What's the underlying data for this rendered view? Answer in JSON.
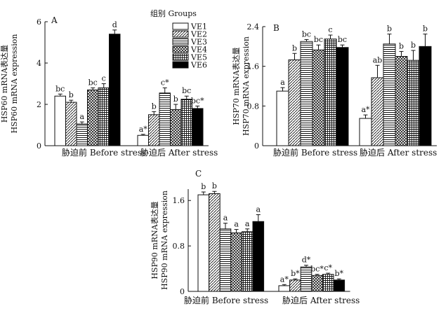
{
  "legend": {
    "title": "组别  Groups",
    "items": [
      {
        "name": "VE1",
        "pattern": "white"
      },
      {
        "name": "VE2",
        "pattern": "diag"
      },
      {
        "name": "VE3",
        "pattern": "hstripe"
      },
      {
        "name": "VE4",
        "pattern": "cross"
      },
      {
        "name": "VE5",
        "pattern": "grid"
      },
      {
        "name": "VE6",
        "pattern": "black"
      }
    ]
  },
  "chart_data": [
    {
      "type": "bar",
      "panel_label": "A",
      "ylabel_line1": "HSP60 mRNA表达量",
      "ylabel_line2": "HSP60 mRNA expression",
      "ylim": [
        0,
        6
      ],
      "yticks": [
        "0",
        "2",
        "4",
        "6"
      ],
      "categories": [
        "胁迫前  Before stress",
        "胁迫后  After stress"
      ],
      "series": [
        {
          "name": "VE1",
          "values": [
            2.4,
            0.5
          ],
          "errors": [
            0.1,
            0.05
          ],
          "labels": [
            "bc",
            "a*"
          ]
        },
        {
          "name": "VE2",
          "values": [
            2.1,
            1.5
          ],
          "errors": [
            0.1,
            0.15
          ],
          "labels": [
            "b",
            "b"
          ]
        },
        {
          "name": "VE3",
          "values": [
            1.05,
            2.55
          ],
          "errors": [
            0.1,
            0.25
          ],
          "labels": [
            "a",
            "c*"
          ]
        },
        {
          "name": "VE4",
          "values": [
            2.7,
            1.75
          ],
          "errors": [
            0.1,
            0.25
          ],
          "labels": [
            "bc",
            "b"
          ]
        },
        {
          "name": "VE5",
          "values": [
            2.8,
            2.25
          ],
          "errors": [
            0.2,
            0.15
          ],
          "labels": [
            "c",
            "bc"
          ]
        },
        {
          "name": "VE6",
          "values": [
            5.4,
            1.8
          ],
          "errors": [
            0.2,
            0.12
          ],
          "labels": [
            "d",
            "bc*"
          ]
        }
      ]
    },
    {
      "type": "bar",
      "panel_label": "B",
      "ylabel_line1": "HSP70 mRNA表达量",
      "ylabel_line2": "HSP70 mRNA expression",
      "ylim": [
        0,
        2.4
      ],
      "yticks": [
        "0",
        "0.8",
        "1.6",
        "2.4"
      ],
      "categories": [
        "胁迫前  Before stress",
        "胁迫后  After stress"
      ],
      "series": [
        {
          "name": "VE1",
          "values": [
            1.1,
            0.55
          ],
          "errors": [
            0.07,
            0.07
          ],
          "labels": [
            "a",
            "a*"
          ]
        },
        {
          "name": "VE2",
          "values": [
            1.73,
            1.37
          ],
          "errors": [
            0.13,
            0.25
          ],
          "labels": [
            "b",
            "ab"
          ]
        },
        {
          "name": "VE3",
          "values": [
            2.1,
            2.05
          ],
          "errors": [
            0.04,
            0.2
          ],
          "labels": [
            "bc",
            "b"
          ]
        },
        {
          "name": "VE4",
          "values": [
            1.93,
            1.8
          ],
          "errors": [
            0.1,
            0.1
          ],
          "labels": [
            "bc",
            "b"
          ]
        },
        {
          "name": "VE5",
          "values": [
            2.15,
            1.72
          ],
          "errors": [
            0.08,
            0.2
          ],
          "labels": [
            "c",
            "b"
          ]
        },
        {
          "name": "VE6",
          "values": [
            1.98,
            2.0
          ],
          "errors": [
            0.05,
            0.25
          ],
          "labels": [
            "bc",
            "b"
          ]
        }
      ]
    },
    {
      "type": "bar",
      "panel_label": "C",
      "ylabel_line1": "HSP90 mRNA表达量",
      "ylabel_line2": "HSP90 mRNA expression",
      "ylim": [
        0,
        1.8
      ],
      "yticks": [
        "0",
        "0.8",
        "1.6"
      ],
      "categories": [
        "胁迫前  Before stress",
        "胁迫后  After stress"
      ],
      "series": [
        {
          "name": "VE1",
          "values": [
            1.7,
            0.1
          ],
          "errors": [
            0.05,
            0.02
          ],
          "labels": [
            "b",
            "a*"
          ]
        },
        {
          "name": "VE2",
          "values": [
            1.72,
            0.2
          ],
          "errors": [
            0.04,
            0.02
          ],
          "labels": [
            "b",
            "b*"
          ]
        },
        {
          "name": "VE3",
          "values": [
            1.1,
            0.43
          ],
          "errors": [
            0.1,
            0.03
          ],
          "labels": [
            "a",
            "d*"
          ]
        },
        {
          "name": "VE4",
          "values": [
            1.03,
            0.28
          ],
          "errors": [
            0.06,
            0.02
          ],
          "labels": [
            "a",
            "bc*"
          ]
        },
        {
          "name": "VE5",
          "values": [
            1.05,
            0.3
          ],
          "errors": [
            0.05,
            0.02
          ],
          "labels": [
            "a",
            "c*"
          ]
        },
        {
          "name": "VE6",
          "values": [
            1.23,
            0.2
          ],
          "errors": [
            0.12,
            0.02
          ],
          "labels": [
            "a",
            "b*"
          ]
        }
      ]
    }
  ]
}
